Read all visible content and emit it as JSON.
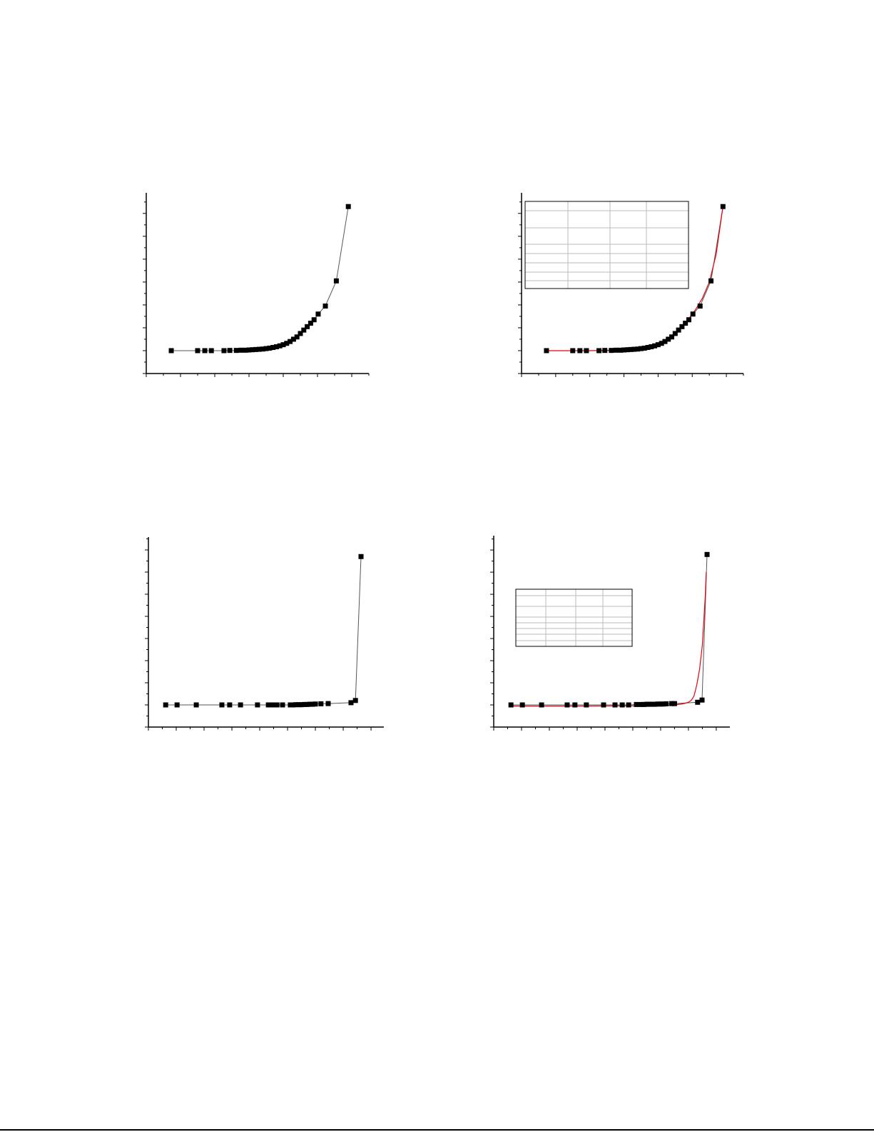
{
  "colors": {
    "axis": "#000000",
    "marker": "#000000",
    "connector": "#555555",
    "fit": "#e8000b",
    "table_grid": "#bbbbbb"
  },
  "chart_data": [
    {
      "type": "scatter",
      "title": "",
      "xlabel": "",
      "ylabel": "",
      "xlim": [
        0,
        6.5
      ],
      "ylim": [
        0,
        7.9
      ],
      "grid": false,
      "marker": "square",
      "connected": true,
      "series": [
        {
          "x": [
            0.73,
            1.5,
            1.71,
            1.9,
            2.27,
            2.44,
            2.63,
            2.77,
            2.9,
            3.0,
            3.1,
            3.2,
            3.3,
            3.4,
            3.5,
            3.6,
            3.7,
            3.8,
            3.9,
            4.0,
            4.1,
            4.2,
            4.3,
            4.4,
            4.5,
            4.6,
            4.7,
            4.8,
            4.9,
            5.02,
            5.23,
            5.55,
            5.9
          ],
          "y": [
            1.0,
            1.0,
            1.0,
            1.0,
            1.0,
            1.01,
            1.01,
            1.02,
            1.02,
            1.03,
            1.04,
            1.05,
            1.06,
            1.07,
            1.09,
            1.11,
            1.14,
            1.17,
            1.21,
            1.26,
            1.32,
            1.4,
            1.5,
            1.6,
            1.75,
            1.9,
            2.05,
            2.2,
            2.35,
            2.6,
            2.95,
            4.05,
            7.3
          ]
        }
      ]
    },
    {
      "type": "scatter",
      "title": "",
      "xlabel": "",
      "ylabel": "",
      "xlim": [
        0,
        6.5
      ],
      "ylim": [
        0,
        7.9
      ],
      "grid": false,
      "marker": "square",
      "connected": true,
      "fit_table": {
        "rows": 8,
        "columns": 4,
        "position": "top-left"
      },
      "series": [
        {
          "x": [
            0.73,
            1.5,
            1.71,
            1.9,
            2.27,
            2.44,
            2.63,
            2.77,
            2.9,
            3.0,
            3.1,
            3.2,
            3.3,
            3.4,
            3.5,
            3.6,
            3.7,
            3.8,
            3.9,
            4.0,
            4.1,
            4.2,
            4.3,
            4.4,
            4.5,
            4.6,
            4.7,
            4.8,
            4.9,
            5.02,
            5.23,
            5.55,
            5.9
          ],
          "y": [
            1.0,
            1.0,
            1.0,
            1.0,
            1.0,
            1.01,
            1.01,
            1.02,
            1.02,
            1.03,
            1.04,
            1.05,
            1.06,
            1.07,
            1.09,
            1.11,
            1.14,
            1.17,
            1.21,
            1.26,
            1.32,
            1.4,
            1.5,
            1.6,
            1.75,
            1.9,
            2.05,
            2.2,
            2.35,
            2.6,
            2.95,
            4.05,
            7.3
          ]
        }
      ],
      "fit": {
        "x": [
          0.73,
          2.0,
          3.0,
          3.5,
          4.0,
          4.3,
          4.6,
          4.9,
          5.1,
          5.3,
          5.5,
          5.7,
          5.9
        ],
        "y": [
          1.0,
          1.0,
          1.03,
          1.09,
          1.26,
          1.5,
          1.9,
          2.4,
          2.8,
          3.3,
          4.0,
          5.2,
          7.3
        ]
      }
    },
    {
      "type": "scatter",
      "title": "",
      "xlabel": "",
      "ylabel": "",
      "xlim": [
        0,
        8.46
      ],
      "ylim": [
        0,
        8.58
      ],
      "grid": false,
      "marker": "square",
      "connected": true,
      "series": [
        {
          "x": [
            0.62,
            1.03,
            1.72,
            2.64,
            2.92,
            3.31,
            3.92,
            4.31,
            4.46,
            4.62,
            4.82,
            5.1,
            5.2,
            5.3,
            5.4,
            5.5,
            5.6,
            5.7,
            5.8,
            5.9,
            6.0,
            6.2,
            6.46,
            7.28,
            7.44,
            7.64
          ],
          "y": [
            1.0,
            1.0,
            1.0,
            1.0,
            1.0,
            1.0,
            1.0,
            1.0,
            1.0,
            1.0,
            1.0,
            1.0,
            1.0,
            1.01,
            1.01,
            1.01,
            1.02,
            1.02,
            1.03,
            1.03,
            1.04,
            1.05,
            1.06,
            1.1,
            1.2,
            7.7
          ]
        }
      ]
    },
    {
      "type": "scatter",
      "title": "",
      "xlabel": "",
      "ylabel": "",
      "xlim": [
        0,
        8.49
      ],
      "ylim": [
        0,
        8.65
      ],
      "grid": false,
      "marker": "square",
      "connected": true,
      "fit_table": {
        "rows": 8,
        "columns": 4,
        "position": "top-left"
      },
      "series": [
        {
          "x": [
            0.62,
            1.03,
            1.72,
            2.64,
            2.92,
            3.33,
            3.95,
            4.36,
            4.62,
            4.85,
            5.13,
            5.3,
            5.4,
            5.5,
            5.6,
            5.7,
            5.8,
            5.9,
            6.0,
            6.1,
            6.2,
            6.4,
            6.5,
            7.33,
            7.49,
            7.67
          ],
          "y": [
            1.0,
            1.0,
            1.0,
            1.0,
            1.0,
            1.0,
            1.0,
            1.0,
            1.0,
            1.0,
            1.02,
            1.02,
            1.02,
            1.03,
            1.03,
            1.03,
            1.03,
            1.04,
            1.04,
            1.04,
            1.05,
            1.06,
            1.06,
            1.12,
            1.22,
            7.8
          ]
        }
      ],
      "fit": {
        "x": [
          0.62,
          3.0,
          5.0,
          6.0,
          6.5,
          6.8,
          7.0,
          7.1,
          7.2,
          7.3,
          7.4,
          7.5,
          7.6,
          7.64
        ],
        "y": [
          0.95,
          0.95,
          0.96,
          0.97,
          1.0,
          1.05,
          1.12,
          1.2,
          1.4,
          1.9,
          2.6,
          3.7,
          5.8,
          7.0
        ]
      }
    }
  ]
}
